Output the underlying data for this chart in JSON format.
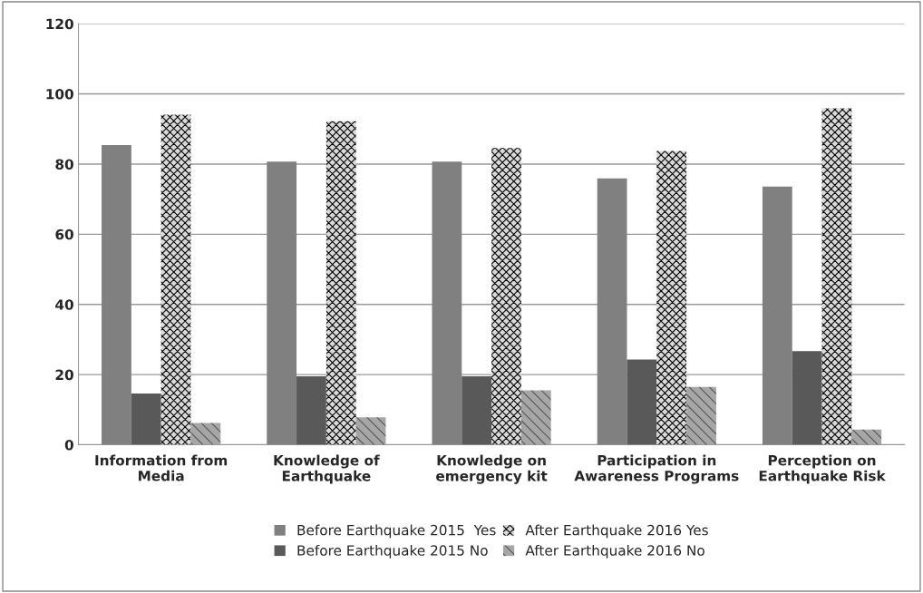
{
  "chart_data": {
    "type": "bar",
    "categories": [
      "Information from\nMedia",
      "Knowledge of\nEarthquake",
      "Knowledge on\nemergency kit",
      "Participation in\nAwareness Programs",
      "Perception on\nEarthquake Risk"
    ],
    "series": [
      {
        "name": "Before Earthquake 2015  Yes",
        "color": "#808080",
        "values": [
          85.4,
          80.7,
          80.7,
          75.9,
          73.6
        ]
      },
      {
        "name": "Before Earthquake 2015 No",
        "color": "#595959",
        "values": [
          14.6,
          19.5,
          19.5,
          24.3,
          26.7
        ]
      },
      {
        "name": "After Earthquake 2016 Yes",
        "color": "#d9d9d9",
        "values": [
          94.1,
          92.2,
          84.6,
          83.7,
          95.9
        ]
      },
      {
        "name": "After Earthquake 2016 No",
        "color": "#a6a6a6",
        "values": [
          6.2,
          7.8,
          15.5,
          16.5,
          4.3
        ]
      }
    ],
    "ylim": [
      0,
      120
    ],
    "yticks": [
      0,
      20,
      40,
      60,
      80,
      100,
      120
    ],
    "grid": "y",
    "legend": "bottom"
  }
}
